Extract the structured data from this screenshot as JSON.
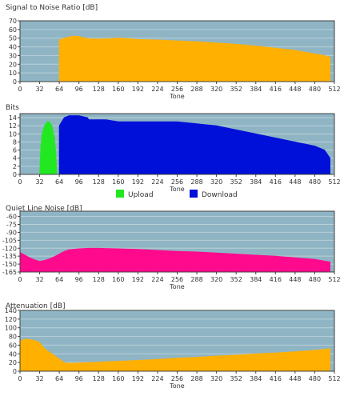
{
  "colors": {
    "plot_background": "#8fb5c4",
    "grid": "#b8d0d8",
    "frame": "#404040",
    "snr": "#ffb000",
    "upload": "#22e822",
    "download": "#0010d8",
    "qln": "#ff0a8c",
    "attenuation": "#ffb000"
  },
  "chart_data": [
    {
      "id": "snr",
      "type": "area",
      "title": "Signal to Noise Ratio [dB]",
      "xlabel": "Tone",
      "ylabel": "",
      "xlim": [
        0,
        512
      ],
      "ylim": [
        0,
        70
      ],
      "x_ticks": [
        0,
        32,
        64,
        96,
        128,
        160,
        192,
        224,
        256,
        288,
        320,
        352,
        384,
        416,
        448,
        480,
        512
      ],
      "y_ticks": [
        0,
        10,
        20,
        30,
        40,
        50,
        60,
        70
      ],
      "grid": true,
      "legend": null,
      "series": [
        {
          "color_key": "snr",
          "points": [
            [
              64,
              48
            ],
            [
              72,
              50
            ],
            [
              80,
              51.5
            ],
            [
              88,
              52.5
            ],
            [
              96,
              52
            ],
            [
              104,
              50.5
            ],
            [
              112,
              49.5
            ],
            [
              128,
              49
            ],
            [
              144,
              49.5
            ],
            [
              160,
              50
            ],
            [
              176,
              49.5
            ],
            [
              192,
              48.5
            ],
            [
              224,
              48
            ],
            [
              256,
              47
            ],
            [
              288,
              46
            ],
            [
              320,
              44.5
            ],
            [
              352,
              43
            ],
            [
              384,
              41
            ],
            [
              416,
              38.5
            ],
            [
              448,
              36
            ],
            [
              464,
              34
            ],
            [
              480,
              32
            ],
            [
              496,
              30
            ],
            [
              505,
              28
            ]
          ]
        }
      ]
    },
    {
      "id": "bits",
      "type": "bar",
      "title": "Bits",
      "xlabel": "Tone",
      "ylabel": "",
      "xlim": [
        0,
        512
      ],
      "ylim": [
        0,
        15
      ],
      "x_ticks": [
        0,
        32,
        64,
        96,
        128,
        160,
        192,
        224,
        256,
        288,
        320,
        352,
        384,
        416,
        448,
        480,
        512
      ],
      "y_ticks": [
        0,
        2,
        4,
        6,
        8,
        10,
        12,
        14
      ],
      "grid": true,
      "legend": "bottom",
      "series": [
        {
          "name": "Upload",
          "color_key": "upload",
          "points": [
            [
              32,
              0
            ],
            [
              34,
              7
            ],
            [
              36,
              10
            ],
            [
              40,
              12
            ],
            [
              44,
              13
            ],
            [
              48,
              13
            ],
            [
              52,
              12
            ],
            [
              56,
              9
            ],
            [
              58,
              6
            ],
            [
              60,
              0
            ]
          ]
        },
        {
          "name": "Download",
          "color_key": "download",
          "points": [
            [
              64,
              12
            ],
            [
              68,
              13
            ],
            [
              72,
              14
            ],
            [
              80,
              14.5
            ],
            [
              96,
              14.5
            ],
            [
              110,
              14
            ],
            [
              112,
              13.5
            ],
            [
              140,
              13.5
            ],
            [
              160,
              13
            ],
            [
              224,
              13
            ],
            [
              256,
              13
            ],
            [
              288,
              12.5
            ],
            [
              320,
              12
            ],
            [
              352,
              11
            ],
            [
              384,
              10
            ],
            [
              416,
              9
            ],
            [
              448,
              8
            ],
            [
              480,
              7
            ],
            [
              496,
              6
            ],
            [
              505,
              4
            ]
          ]
        }
      ]
    },
    {
      "id": "qln",
      "type": "area",
      "title": "Quiet Line Noise [dB]",
      "xlabel": "Tone",
      "ylabel": "",
      "xlim": [
        0,
        512
      ],
      "ylim": [
        -165,
        -50
      ],
      "x_ticks": [
        0,
        32,
        64,
        96,
        128,
        160,
        192,
        224,
        256,
        288,
        320,
        352,
        384,
        416,
        448,
        480,
        512
      ],
      "y_tick_labels": [
        "-60",
        "-75",
        "-90",
        "-105",
        "-120",
        "-135",
        "-150",
        "-165"
      ],
      "y_tick_values": [
        -60,
        -75,
        -90,
        -105,
        -120,
        -135,
        -150,
        -165
      ],
      "grid": true,
      "legend": null,
      "series": [
        {
          "color_key": "qln",
          "points": [
            [
              0,
              -128
            ],
            [
              8,
              -133
            ],
            [
              16,
              -138
            ],
            [
              24,
              -142
            ],
            [
              32,
              -145
            ],
            [
              40,
              -143
            ],
            [
              48,
              -140
            ],
            [
              56,
              -136
            ],
            [
              64,
              -131
            ],
            [
              72,
              -126
            ],
            [
              80,
              -123
            ],
            [
              96,
              -121
            ],
            [
              112,
              -120
            ],
            [
              128,
              -120
            ],
            [
              160,
              -121
            ],
            [
              192,
              -122
            ],
            [
              224,
              -124
            ],
            [
              256,
              -126
            ],
            [
              288,
              -127
            ],
            [
              320,
              -129
            ],
            [
              352,
              -131
            ],
            [
              384,
              -133
            ],
            [
              416,
              -135
            ],
            [
              448,
              -138
            ],
            [
              480,
              -141
            ],
            [
              505,
              -146
            ]
          ]
        }
      ]
    },
    {
      "id": "attenuation",
      "type": "area",
      "title": "Attenuation [dB]",
      "xlabel": "Tone",
      "ylabel": "",
      "xlim": [
        0,
        512
      ],
      "ylim": [
        0,
        140
      ],
      "x_ticks": [
        0,
        32,
        64,
        96,
        128,
        160,
        192,
        224,
        256,
        288,
        320,
        352,
        384,
        416,
        448,
        480,
        512
      ],
      "y_ticks": [
        0,
        20,
        40,
        60,
        80,
        100,
        120,
        140
      ],
      "grid": true,
      "legend": null,
      "series": [
        {
          "color_key": "attenuation",
          "points": [
            [
              0,
              68
            ],
            [
              4,
              72
            ],
            [
              10,
              74
            ],
            [
              16,
              73
            ],
            [
              24,
              71
            ],
            [
              32,
              66
            ],
            [
              40,
              52
            ],
            [
              48,
              44
            ],
            [
              56,
              36
            ],
            [
              64,
              28
            ],
            [
              72,
              20
            ],
            [
              80,
              18
            ],
            [
              96,
              19
            ],
            [
              128,
              21
            ],
            [
              160,
              23
            ],
            [
              192,
              25
            ],
            [
              224,
              27
            ],
            [
              256,
              30
            ],
            [
              288,
              32
            ],
            [
              320,
              35
            ],
            [
              352,
              37
            ],
            [
              384,
              40
            ],
            [
              416,
              42
            ],
            [
              448,
              45
            ],
            [
              480,
              48
            ],
            [
              505,
              52
            ]
          ]
        }
      ]
    }
  ]
}
